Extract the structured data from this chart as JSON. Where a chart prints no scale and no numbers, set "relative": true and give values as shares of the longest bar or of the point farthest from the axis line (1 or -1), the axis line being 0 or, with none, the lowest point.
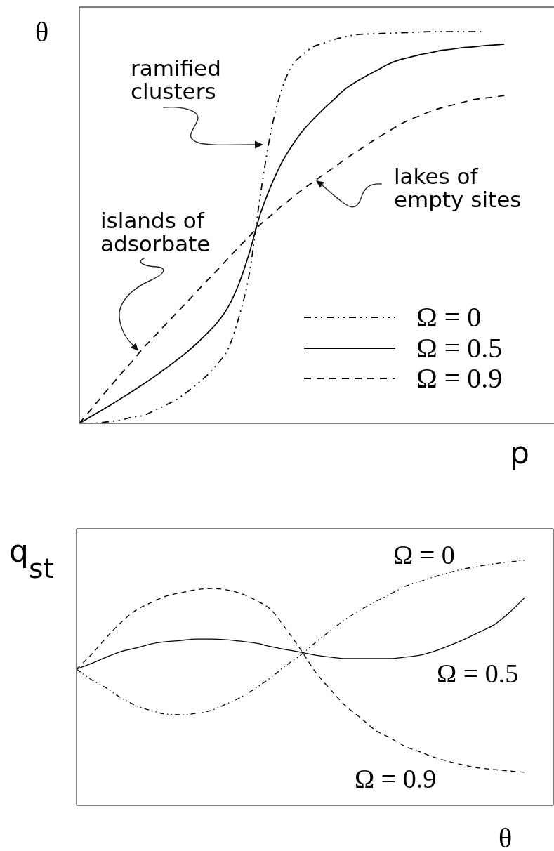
{
  "chart_data": [
    {
      "type": "line",
      "relative": true,
      "xlabel": "p",
      "ylabel": "θ",
      "legend": "bottom right",
      "annotations": [
        "ramified clusters",
        "lakes of empty sites",
        "islands of adsorbate"
      ],
      "categories": [
        null,
        null,
        null,
        null,
        null,
        null,
        null,
        null,
        null,
        null,
        null,
        null,
        null,
        null,
        null,
        null,
        null,
        null,
        null,
        null,
        null,
        null,
        null,
        null,
        null,
        null,
        null,
        null,
        null,
        null,
        null,
        null,
        null,
        null,
        null,
        null,
        null,
        null,
        null,
        null,
        null
      ],
      "series": [
        {
          "name": "Ω = 0",
          "color": "#000000",
          "line_style": "dotted",
          "values": [
            0,
            0,
            0.002,
            0.005,
            0.009,
            0.016,
            0.02,
            0.032,
            0.045,
            0.059,
            0.077,
            0.099,
            0.122,
            0.152,
            0.19,
            0.269,
            0.382,
            0.575,
            0.74,
            0.848,
            0.912,
            0.941,
            0.961,
            0.971,
            0.98,
            0.987,
            0.992,
            0.994,
            0.995,
            0.996,
            0.997,
            0.998,
            0.999,
            1,
            1,
            1,
            1,
            1,
            1,
            null,
            null
          ]
        },
        {
          "name": "Ω = 0.5",
          "color": "#000000",
          "line_style": "solid",
          "values": [
            0,
            0.016,
            0.032,
            0.048,
            0.065,
            0.082,
            0.1,
            0.118,
            0.138,
            0.158,
            0.179,
            0.203,
            0.229,
            0.258,
            0.297,
            0.355,
            0.435,
            0.532,
            0.604,
            0.663,
            0.708,
            0.746,
            0.776,
            0.803,
            0.828,
            0.853,
            0.871,
            0.887,
            0.901,
            0.916,
            0.927,
            0.934,
            0.941,
            0.946,
            0.952,
            0.955,
            0.959,
            0.961,
            0.964,
            0.966,
            0.968
          ]
        },
        {
          "name": "Ω = 0.9",
          "color": "#000000",
          "line_style": "dashed",
          "values": [
            0,
            0.032,
            0.065,
            0.097,
            0.129,
            0.159,
            0.192,
            0.22,
            0.249,
            0.278,
            0.306,
            0.335,
            0.364,
            0.392,
            0.421,
            0.45,
            0.478,
            0.507,
            0.53,
            0.554,
            0.575,
            0.597,
            0.616,
            0.636,
            0.654,
            0.674,
            0.692,
            0.71,
            0.728,
            0.744,
            0.76,
            0.774,
            0.785,
            0.796,
            0.805,
            0.812,
            0.819,
            0.826,
            0.83,
            0.833,
            0.837
          ]
        }
      ]
    },
    {
      "type": "line",
      "relative": true,
      "xlabel": "θ",
      "ylabel": "q$_{st}$",
      "categories": [
        null,
        null,
        null,
        null,
        null,
        null,
        null,
        null,
        null,
        null,
        null,
        null,
        null,
        null,
        null,
        null,
        null,
        null,
        null,
        null,
        null,
        null,
        null,
        null,
        null,
        null,
        null,
        null,
        null,
        null,
        null
      ],
      "series": [
        {
          "name": "Ω = 0",
          "color": "#000000",
          "line_style": "dotted",
          "values": [
            0.556,
            0.513,
            0.479,
            0.438,
            0.407,
            0.387,
            0.372,
            0.37,
            0.375,
            0.387,
            0.413,
            0.441,
            0.479,
            0.521,
            0.57,
            0.613,
            0.665,
            0.713,
            0.759,
            0.797,
            0.831,
            0.862,
            0.894,
            0.914,
            0.934,
            0.951,
            0.966,
            0.977,
            0.986,
            0.994,
            1
          ]
        },
        {
          "name": "Ω = 0.5",
          "color": "#000000",
          "line_style": "solid",
          "values": [
            0.556,
            0.579,
            0.605,
            0.628,
            0.642,
            0.659,
            0.668,
            0.673,
            0.679,
            0.679,
            0.676,
            0.67,
            0.662,
            0.648,
            0.636,
            0.625,
            0.613,
            0.605,
            0.599,
            0.599,
            0.599,
            0.599,
            0.605,
            0.613,
            0.63,
            0.653,
            0.679,
            0.708,
            0.739,
            0.788,
            0.848
          ]
        },
        {
          "name": "Ω = 0.9",
          "color": "#000000",
          "line_style": "dashed",
          "values": [
            0.556,
            0.616,
            0.685,
            0.748,
            0.797,
            0.828,
            0.854,
            0.868,
            0.88,
            0.885,
            0.88,
            0.865,
            0.837,
            0.799,
            0.722,
            0.636,
            0.544,
            0.473,
            0.407,
            0.358,
            0.307,
            0.275,
            0.241,
            0.218,
            0.195,
            0.178,
            0.163,
            0.152,
            0.146,
            0.14,
            0.135
          ]
        }
      ]
    }
  ]
}
